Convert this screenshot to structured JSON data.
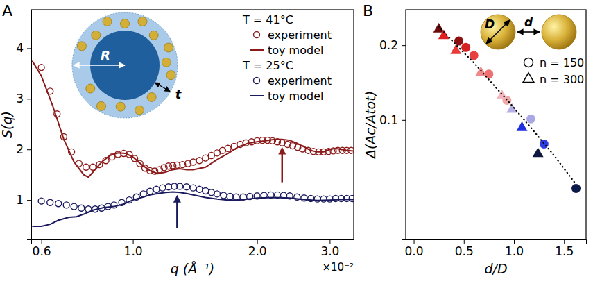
{
  "chart_data": [
    {
      "panel": "A",
      "type": "line",
      "x_label": "q (Å⁻¹)",
      "x_multiplier": "×10⁻²",
      "y_label": "S(q)",
      "log": "x",
      "xlim": [
        0.567,
        3.43
      ],
      "xticks": [
        0.6,
        {
          "value": 1,
          "label": "1.0"
        },
        {
          "value": 2,
          "label": "2.0"
        },
        {
          "value": 3,
          "label": "3.0"
        }
      ],
      "ylim": [
        0.22,
        4.76
      ],
      "yticks": [
        1,
        2,
        3,
        4
      ],
      "legend": "upper right",
      "inset_labels": [
        "R",
        "t"
      ],
      "series": [
        {
          "name": "experiment",
          "group": "T = 41°C",
          "type": "scatter",
          "marker": "open-circle",
          "color": "#8b1a1a",
          "x": [
            0.6,
            0.63,
            0.655,
            0.68,
            0.71,
            0.74,
            0.77,
            0.8,
            0.83,
            0.86,
            0.89,
            0.92,
            0.95,
            0.98,
            1.01,
            1.04,
            1.07,
            1.1,
            1.13,
            1.16,
            1.19,
            1.22,
            1.25,
            1.28,
            1.32,
            1.36,
            1.4,
            1.45,
            1.5,
            1.55,
            1.6,
            1.65,
            1.7,
            1.76,
            1.82,
            1.88,
            1.94,
            2.0,
            2.06,
            2.12,
            2.18,
            2.24,
            2.3,
            2.37,
            2.44,
            2.51,
            2.58,
            2.66,
            2.74,
            2.82,
            2.9,
            2.98,
            3.06,
            3.14,
            3.22,
            3.3,
            3.38
          ],
          "values": [
            3.62,
            3.15,
            2.7,
            2.25,
            1.95,
            1.72,
            1.65,
            1.65,
            1.7,
            1.78,
            1.85,
            1.9,
            1.92,
            1.9,
            1.82,
            1.72,
            1.63,
            1.58,
            1.57,
            1.6,
            1.64,
            1.67,
            1.68,
            1.69,
            1.7,
            1.72,
            1.75,
            1.78,
            1.83,
            1.88,
            1.93,
            1.98,
            2.02,
            2.06,
            2.1,
            2.13,
            2.15,
            2.17,
            2.18,
            2.18,
            2.17,
            2.15,
            2.13,
            2.1,
            2.07,
            2.04,
            2.01,
            1.98,
            1.96,
            1.95,
            1.95,
            1.96,
            1.97,
            1.98,
            1.98,
            1.98,
            1.98
          ]
        },
        {
          "name": "toy model",
          "group": "T = 41°C",
          "type": "line",
          "line_style": "solid",
          "color": "#8b1a1a",
          "x": [
            0.57,
            0.6,
            0.64,
            0.68,
            0.72,
            0.76,
            0.78,
            0.8,
            0.84,
            0.88,
            0.92,
            0.96,
            1.0,
            1.05,
            1.1,
            1.15,
            1.2,
            1.25,
            1.3,
            1.35,
            1.4,
            1.5,
            1.6,
            1.7,
            1.8,
            1.9,
            2.0,
            2.1,
            2.2,
            2.3,
            2.4,
            2.5,
            2.6,
            2.7,
            2.8,
            2.9,
            3.0,
            3.1,
            3.2,
            3.3,
            3.43
          ],
          "values": [
            3.75,
            3.45,
            2.85,
            2.2,
            1.75,
            1.5,
            1.45,
            1.55,
            1.75,
            1.88,
            1.93,
            1.92,
            1.85,
            1.7,
            1.58,
            1.52,
            1.55,
            1.6,
            1.62,
            1.6,
            1.6,
            1.65,
            1.8,
            1.92,
            2.05,
            2.12,
            2.15,
            2.17,
            2.2,
            2.2,
            2.18,
            2.12,
            2.05,
            1.98,
            1.95,
            1.95,
            2.0,
            2.02,
            2.0,
            1.98,
            1.97
          ]
        },
        {
          "name": "experiment",
          "group": "T = 25°C",
          "type": "scatter",
          "marker": "open-circle",
          "color": "#1a1a5e",
          "x": [
            0.6,
            0.63,
            0.66,
            0.69,
            0.72,
            0.75,
            0.78,
            0.81,
            0.84,
            0.87,
            0.9,
            0.94,
            0.98,
            1.02,
            1.06,
            1.1,
            1.14,
            1.18,
            1.22,
            1.26,
            1.3,
            1.35,
            1.4,
            1.45,
            1.5,
            1.55,
            1.6,
            1.66,
            1.72,
            1.78,
            1.85,
            1.92,
            2.0,
            2.08,
            2.16,
            2.24,
            2.32,
            2.4,
            2.5,
            2.6,
            2.7,
            2.8,
            2.9,
            3.0,
            3.1,
            3.2,
            3.3,
            3.4
          ],
          "values": [
            0.98,
            0.95,
            0.93,
            0.9,
            0.87,
            0.84,
            0.82,
            0.82,
            0.84,
            0.87,
            0.9,
            0.95,
            1.0,
            1.06,
            1.12,
            1.17,
            1.21,
            1.24,
            1.26,
            1.27,
            1.27,
            1.26,
            1.24,
            1.21,
            1.18,
            1.15,
            1.12,
            1.09,
            1.07,
            1.06,
            1.06,
            1.07,
            1.08,
            1.09,
            1.1,
            1.1,
            1.09,
            1.08,
            1.06,
            1.04,
            1.03,
            1.02,
            1.02,
            1.02,
            1.03,
            1.03,
            1.03,
            1.03
          ]
        },
        {
          "name": "toy model",
          "group": "T = 25°C",
          "type": "line",
          "line_style": "solid",
          "color": "#1a1a5e",
          "x": [
            0.57,
            0.6,
            0.63,
            0.66,
            0.7,
            0.73,
            0.76,
            0.8,
            0.85,
            0.9,
            0.95,
            1.0,
            1.05,
            1.1,
            1.15,
            1.2,
            1.25,
            1.3,
            1.35,
            1.4,
            1.5,
            1.6,
            1.7,
            1.8,
            1.9,
            2.0,
            2.2,
            2.4,
            2.6,
            2.8,
            3.0,
            3.2,
            3.43
          ],
          "values": [
            0.48,
            0.48,
            0.52,
            0.6,
            0.66,
            0.67,
            0.72,
            0.8,
            0.85,
            0.87,
            0.92,
            1.0,
            1.05,
            1.1,
            1.13,
            1.15,
            1.16,
            1.15,
            1.13,
            1.1,
            1.05,
            1.02,
            1.0,
            1.0,
            1.02,
            1.04,
            1.05,
            1.04,
            1.01,
            0.99,
            1.0,
            1.01,
            1.01
          ]
        }
      ],
      "annotations": [
        {
          "type": "arrow",
          "x": 2.3,
          "y": [
            1.35,
            2.05
          ],
          "color": "#8b1a1a"
        },
        {
          "type": "arrow",
          "x": 1.28,
          "y": [
            0.45,
            1.1
          ],
          "color": "#1a1a5e"
        }
      ]
    },
    {
      "panel": "B",
      "type": "scatter",
      "x_label": "d/D",
      "y_label": "Δ(Ac/Atot)",
      "log": "y",
      "xlim": [
        -0.08,
        1.72
      ],
      "xticks": [
        {
          "value": 0,
          "label": "0.0"
        },
        0.5,
        {
          "value": 1,
          "label": "1.0"
        },
        1.5
      ],
      "ylim": [
        0.033,
        0.278
      ],
      "yticks": [
        0.1,
        0.2
      ],
      "legend": "upper right",
      "inset_labels": [
        "D",
        "d"
      ],
      "series": [
        {
          "name": "n = 150",
          "type": "scatter",
          "marker": "circle",
          "colors": [
            "#8b1010",
            "#d42020",
            "#e84040",
            "#ee7070",
            "#f2a8a8",
            "#a8a8e6",
            "#2c3ee0",
            "#0c1a4a"
          ],
          "x": [
            0.45,
            0.52,
            0.6,
            0.75,
            0.93,
            1.17,
            1.3,
            1.62
          ],
          "values": [
            0.208,
            0.196,
            0.182,
            0.153,
            0.12,
            0.101,
            0.08,
            0.053
          ]
        },
        {
          "name": "n = 300",
          "type": "scatter",
          "marker": "triangle",
          "colors": [
            "#6e0a0a",
            "#e02020",
            "#e83a3a",
            "#f08a8a",
            "#f4b6be",
            "#b6b0e6",
            "#2030e0",
            "#101840"
          ],
          "x": [
            0.25,
            0.3,
            0.42,
            0.67,
            0.88,
            0.98,
            1.08,
            1.24
          ],
          "values": [
            0.232,
            0.218,
            0.19,
            0.155,
            0.125,
            0.11,
            0.093,
            0.073
          ]
        },
        {
          "type": "line",
          "line_style": "dotted",
          "color": "#000000",
          "x": [
            0.25,
            0.4,
            0.6,
            0.8,
            1.0,
            1.2,
            1.4,
            1.62
          ],
          "values": [
            0.238,
            0.205,
            0.17,
            0.138,
            0.112,
            0.09,
            0.072,
            0.055
          ]
        }
      ]
    }
  ]
}
